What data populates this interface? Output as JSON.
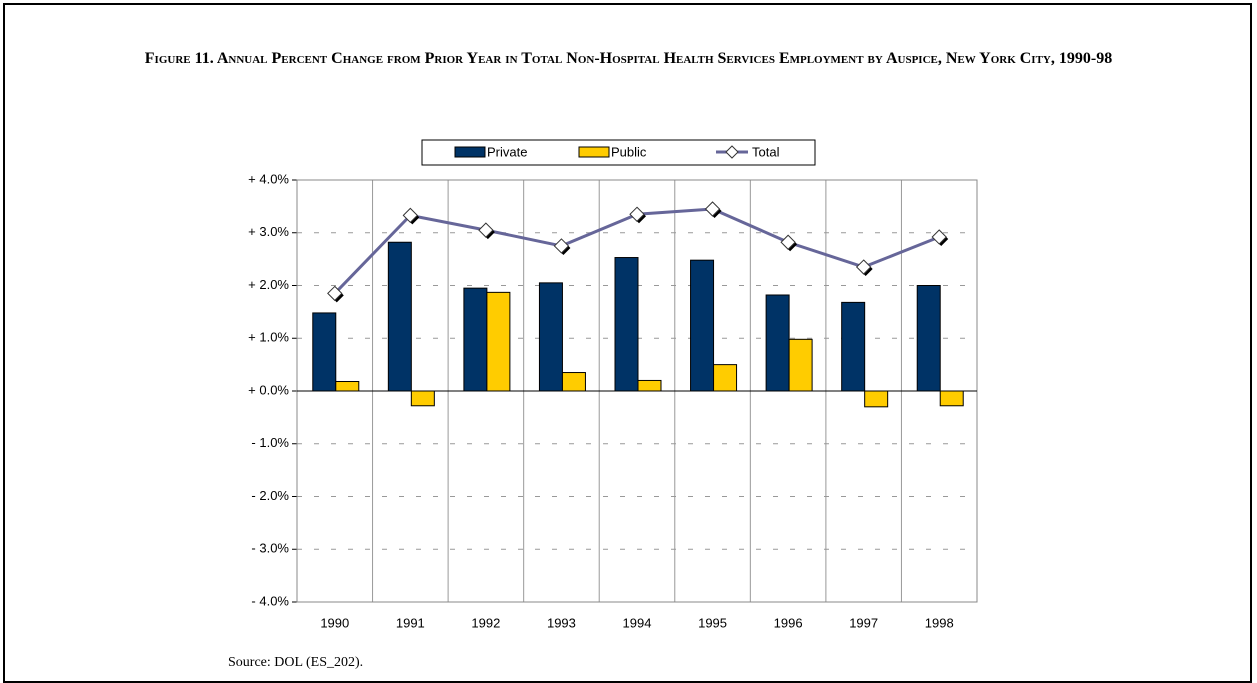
{
  "chart_data": {
    "type": "bar",
    "title": "Figure 11.  Annual Percent Change from Prior Year in Total Non-Hospital Health Services Employment by Auspice, New York City, 1990-98",
    "source": "Source:  DOL (ES_202).",
    "categories": [
      "1990",
      "1991",
      "1992",
      "1993",
      "1994",
      "1995",
      "1996",
      "1997",
      "1998"
    ],
    "series": [
      {
        "name": "Private",
        "type": "bar",
        "color": "#003366",
        "values": [
          1.48,
          2.82,
          1.95,
          2.05,
          2.53,
          2.48,
          1.82,
          1.68,
          2.0
        ]
      },
      {
        "name": "Public",
        "type": "bar",
        "color": "#ffcc00",
        "values": [
          0.18,
          -0.28,
          1.87,
          0.35,
          0.2,
          0.5,
          0.98,
          -0.3,
          -0.28
        ]
      },
      {
        "name": "Total",
        "type": "line",
        "color": "#666699",
        "values": [
          1.85,
          3.33,
          3.05,
          2.75,
          3.35,
          3.45,
          2.82,
          2.35,
          2.92
        ]
      }
    ],
    "ylim": [
      -4,
      4
    ],
    "yticks": [
      {
        "value": 4,
        "label": "+ 4.0%"
      },
      {
        "value": 3,
        "label": "+ 3.0%"
      },
      {
        "value": 2,
        "label": "+ 2.0%"
      },
      {
        "value": 1,
        "label": "+ 1.0%"
      },
      {
        "value": 0,
        "label": "+ 0.0%"
      },
      {
        "value": -1,
        "label": "- 1.0%"
      },
      {
        "value": -2,
        "label": "- 2.0%"
      },
      {
        "value": -3,
        "label": "- 3.0%"
      },
      {
        "value": -4,
        "label": "- 4.0%"
      }
    ],
    "grid": true,
    "legend": "top"
  }
}
